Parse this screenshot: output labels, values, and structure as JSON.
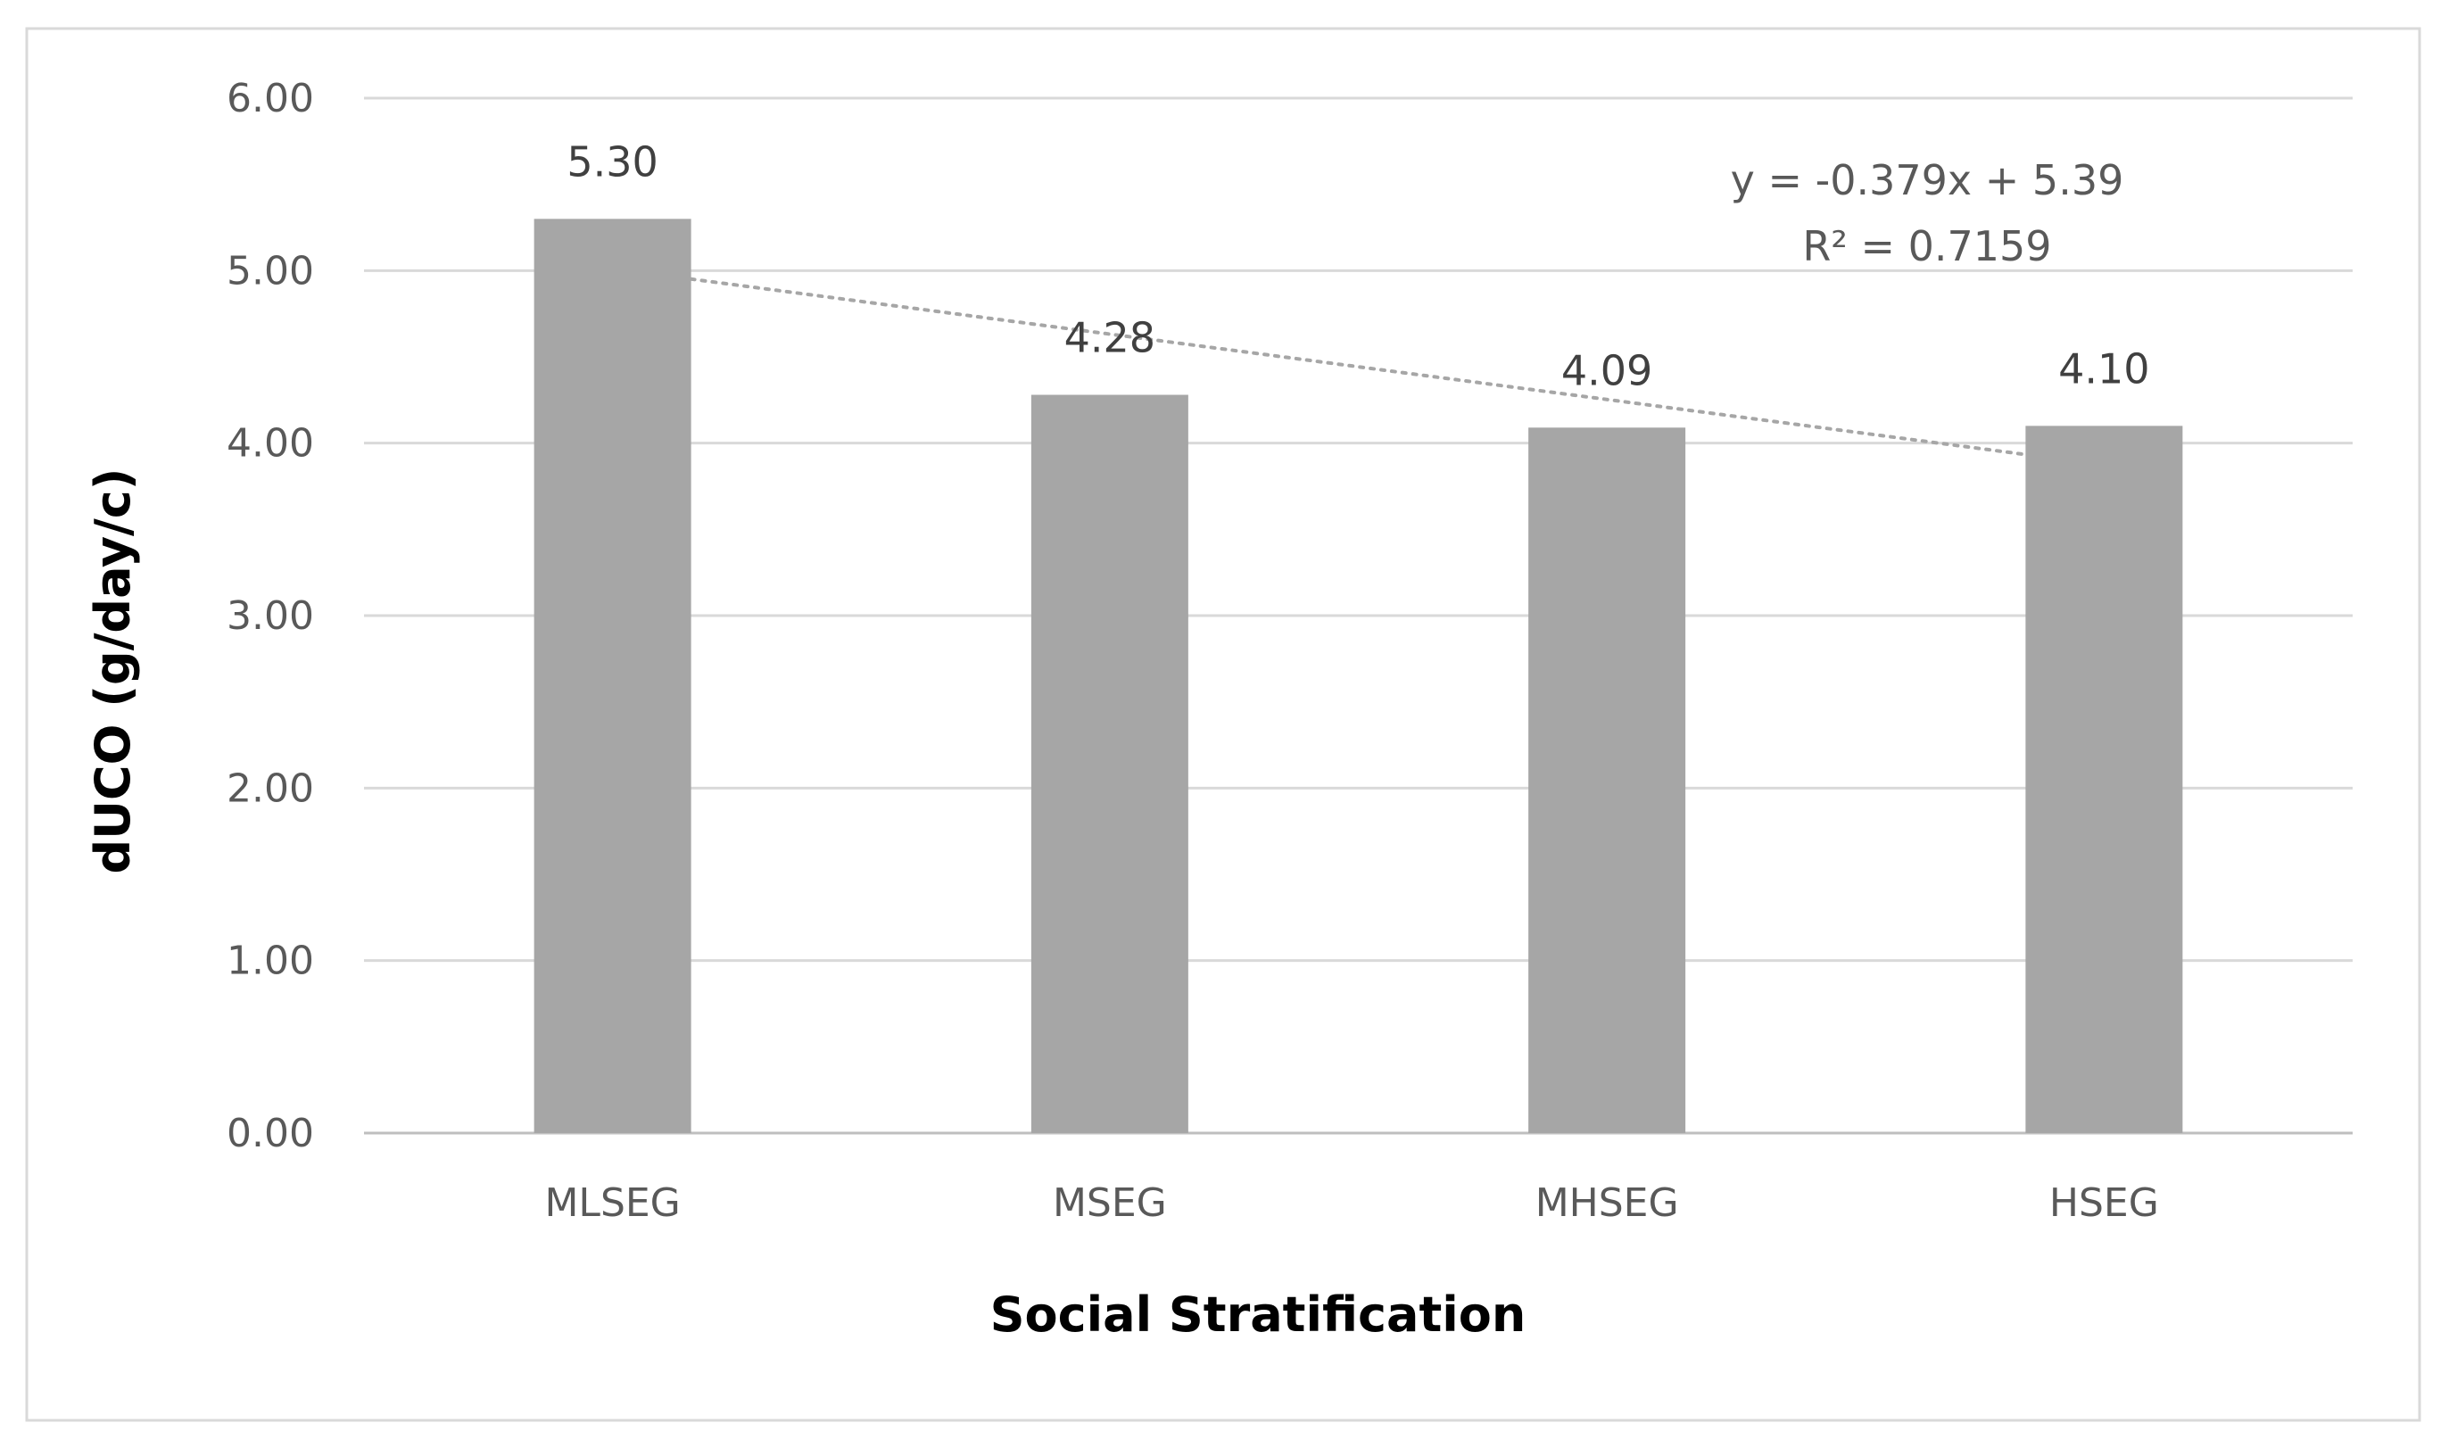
{
  "chart_data": {
    "type": "bar",
    "title": "",
    "categories": [
      "MLSEG",
      "MSEG",
      "MHSEG",
      "HSEG"
    ],
    "values": [
      5.3,
      4.28,
      4.09,
      4.1
    ],
    "data_labels": [
      "5.30",
      "4.28",
      "4.09",
      "4.10"
    ],
    "xlabel": "Social Stratification",
    "ylabel": "dUCO (g/day/c)",
    "ylim": [
      0,
      6
    ],
    "yticks": [
      0,
      1,
      2,
      3,
      4,
      5,
      6
    ],
    "ytick_labels": [
      "0.00",
      "1.00",
      "2.00",
      "3.00",
      "4.00",
      "5.00",
      "6.00"
    ],
    "grid": true,
    "legend": "none",
    "bar_color": "#a6a6a6",
    "trendline": {
      "type": "linear",
      "style": "dotted",
      "slope": -0.379,
      "intercept": 5.39,
      "equation": "y = -0.379x + 5.39",
      "r_squared": "R² = 0.7159"
    }
  }
}
